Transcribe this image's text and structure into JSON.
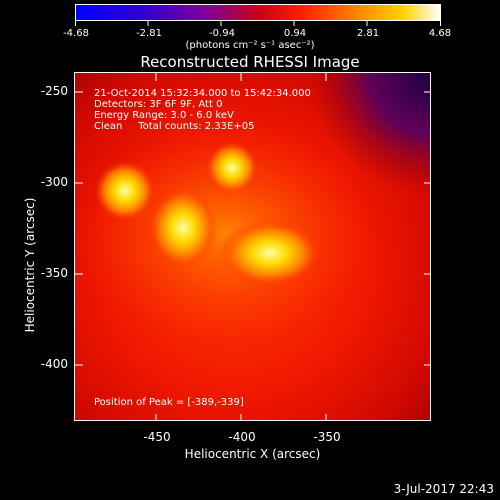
{
  "colorbar": {
    "ticks": [
      "-4.68",
      "-2.81",
      "-0.94",
      "0.94",
      "2.81",
      "4.68"
    ],
    "units": "(photons cm⁻² s⁻¹ asec⁻²)"
  },
  "title": "Reconstructed RHESSI Image",
  "annotations": {
    "line1": "21-Oct-2014 15:32:34.000 to 15:42:34.000",
    "line2": "Detectors: 3F 6F 9F, Att 0",
    "line3": "Energy Range: 3.0 - 6.0 keV",
    "line4": "Clean     Total counts: 2.33E+05",
    "peak": "Position of Peak = [-389,-339]"
  },
  "axes": {
    "xlabel": "Heliocentric X (arcsec)",
    "ylabel": "Heliocentric Y (arcsec)",
    "x_ticks": [
      "-450",
      "-400",
      "-350"
    ],
    "y_ticks": [
      "-250",
      "-300",
      "-350",
      "-400"
    ]
  },
  "footer": "3-Jul-2017 22:43",
  "colors": {
    "low": "#0000ff",
    "mid": "#ff0000",
    "high": "#ffffff"
  }
}
